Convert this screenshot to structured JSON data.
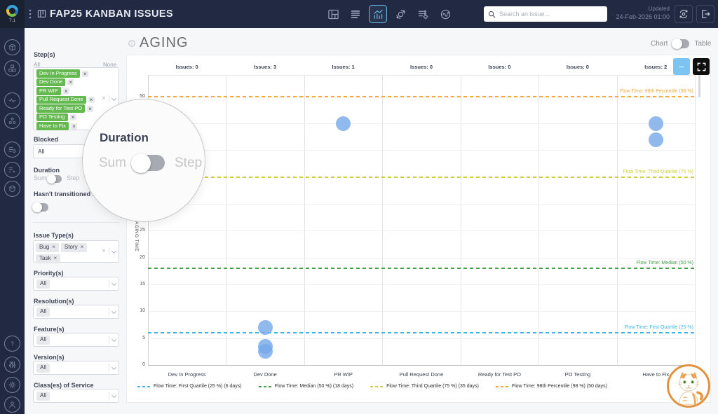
{
  "topbar": {
    "version": "7.1",
    "title": "FAP25 KANBAN ISSUES",
    "search_placeholder": "Search an issue...",
    "updated_label": "Updated",
    "updated_time": "24-Feb-2026 01:00",
    "view_icons": [
      {
        "name": "board-view-icon",
        "active": false
      },
      {
        "name": "list-view-icon",
        "active": false
      },
      {
        "name": "chart-view-icon",
        "active": true
      },
      {
        "name": "cycle-view-icon",
        "active": false
      },
      {
        "name": "work-items-view-icon",
        "active": false
      },
      {
        "name": "flow-view-icon",
        "active": false
      }
    ]
  },
  "sidebar": {
    "top_icons": [
      "package-icon",
      "modules-icon",
      "pulse-icon",
      "components-icon",
      "list-settings-icon",
      "list-run-icon",
      "box-icon"
    ],
    "bottom_icons": [
      "help-icon",
      "filters-icon",
      "settings-icon",
      "user-icon"
    ]
  },
  "filters": {
    "steps": {
      "label": "Step(s)",
      "select_all": "All",
      "select_none": "None",
      "tags": [
        "Dev In Progress",
        "Dev Done",
        "PR WIP",
        "Pull Request Done",
        "Ready for Test PO",
        "PO Testing",
        "Have to Fix"
      ],
      "tag_color": "#63b94f"
    },
    "blocked": {
      "label": "Blocked",
      "value": "All"
    },
    "duration": {
      "label": "Duration",
      "left_option": "Sum",
      "right_option": "Step"
    },
    "transition": {
      "label": "Hasn't transitioned since"
    },
    "issue_types": {
      "label": "Issue Type(s)",
      "tags": [
        "Bug",
        "Story",
        "Task"
      ]
    },
    "priority": {
      "label": "Priority(s)",
      "value": "All"
    },
    "resolution": {
      "label": "Resolution(s)",
      "value": "All"
    },
    "feature": {
      "label": "Feature(s)",
      "value": "All"
    },
    "version": {
      "label": "Version(s)",
      "value": "All"
    },
    "class_of_service": {
      "label": "Class(es) of Service",
      "value": "All"
    }
  },
  "magnifier": {
    "title": "Duration",
    "left_option": "Sum",
    "right_option": "Step"
  },
  "main": {
    "title": "AGING",
    "toggle_left": "Chart",
    "toggle_right": "Table",
    "zoom_out_label": "−"
  },
  "chart_data": {
    "type": "scatter",
    "title": "AGING",
    "ylabel": "AGING TIME",
    "ylim": [
      0,
      54
    ],
    "yticks": [
      0,
      5,
      10,
      15,
      20,
      25,
      30,
      35,
      40,
      45,
      50
    ],
    "grid": true,
    "categories": [
      "Dev In Progress",
      "Dev Done",
      "PR WIP",
      "Pull Request Done",
      "Ready for Test PO",
      "PO Testing",
      "Have to Fix"
    ],
    "issues_counts_label_prefix": "Issues:",
    "issue_counts": [
      0,
      3,
      1,
      0,
      0,
      0,
      2
    ],
    "points": [
      {
        "category": "Dev Done",
        "value": 7
      },
      {
        "category": "Dev Done",
        "value": 3.5
      },
      {
        "category": "Dev Done",
        "value": 2.5
      },
      {
        "category": "PR WIP",
        "value": 45
      },
      {
        "category": "Have to Fix",
        "value": 45
      },
      {
        "category": "Have to Fix",
        "value": 42
      }
    ],
    "point_color": "#74a7e8",
    "reference_lines": [
      {
        "label": "Flow Time: First Quartile (25 %)",
        "days": 6,
        "color": "#3db5e6"
      },
      {
        "label": "Flow Time: Median (50 %)",
        "days": 18,
        "color": "#43a047"
      },
      {
        "label": "Flow Time: Third Quartile (75 %)",
        "days": 35,
        "color": "#cdd13e"
      },
      {
        "label": "Flow Time: 98th Percentile (98 %)",
        "days": 50,
        "color": "#f2a93b"
      }
    ],
    "legend": [
      {
        "label": "Flow Time: First Quartile (25 %) (6 days)",
        "color": "#3db5e6"
      },
      {
        "label": "Flow Time: Median (50 %) (18 days)",
        "color": "#43a047"
      },
      {
        "label": "Flow Time: Third Quartile (75 %) (35 days)",
        "color": "#cdd13e"
      },
      {
        "label": "Flow Time: 98th Percentile (98 %) (50 days)",
        "color": "#f2a93b"
      }
    ],
    "legend_position": "bottom"
  }
}
